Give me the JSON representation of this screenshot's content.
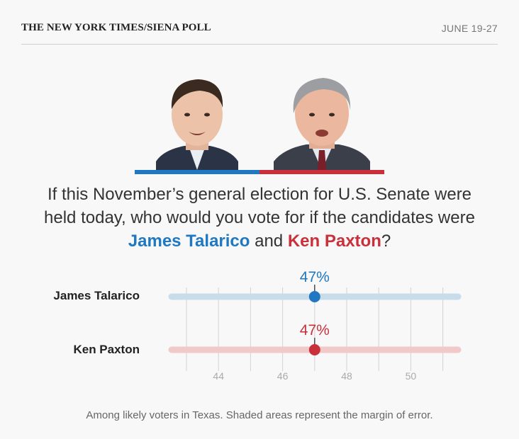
{
  "header": {
    "title": "THE NEW YORK TIMES/SIENA POLL",
    "date": "JUNE 19-27"
  },
  "question": {
    "part1": "If this November’s general election for U.S. Senate were held today, who would you vote for if the candidates were ",
    "candidate_a": "James Talarico",
    "connector": " and ",
    "candidate_b": "Ken Paxton",
    "end": "?"
  },
  "colors": {
    "talarico": "#1f78c1",
    "paxton": "#c9303c",
    "talarico_band": "#c9dcea",
    "paxton_band": "#f1c9c9",
    "grid": "#d2d2d2",
    "tick": "#aaaaaa"
  },
  "chart_data": {
    "type": "scatter",
    "title": "",
    "xlabel": "",
    "ylabel": "",
    "xlim": [
      42.5,
      51.5
    ],
    "x_ticks": [
      44,
      46,
      48,
      50
    ],
    "x_grid": [
      43,
      44,
      45,
      46,
      47,
      48,
      49,
      50,
      51
    ],
    "series": [
      {
        "name": "James Talarico",
        "value": 47,
        "label": "47%",
        "color_key": "talarico"
      },
      {
        "name": "Ken Paxton",
        "value": 47,
        "label": "47%",
        "color_key": "paxton"
      }
    ]
  },
  "footnote": "Among likely voters in Texas. Shaded areas represent the margin of error."
}
